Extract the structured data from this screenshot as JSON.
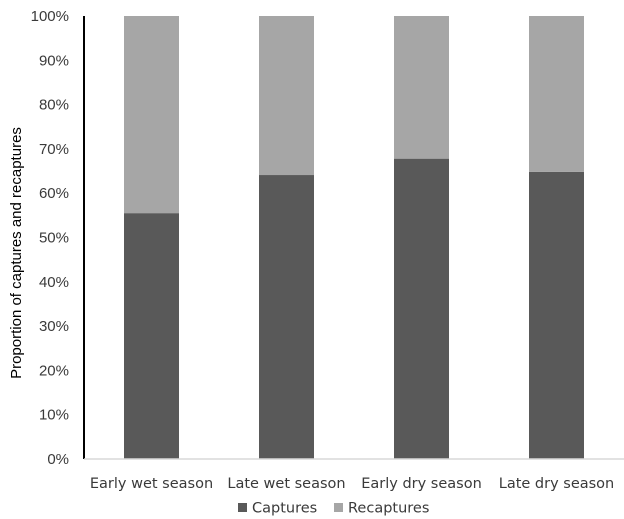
{
  "chart_data": {
    "type": "bar",
    "stacked": true,
    "categories": [
      "Early wet season",
      "Late wet season",
      "Early dry season",
      "Late dry season"
    ],
    "series": [
      {
        "name": "Captures",
        "values": [
          55.5,
          64.1,
          67.8,
          64.8
        ],
        "color": "#595959"
      },
      {
        "name": "Recaptures",
        "values": [
          44.5,
          35.9,
          32.2,
          35.2
        ],
        "color": "#a6a6a6"
      }
    ],
    "ylabel": "Proportion of captures and recaptures",
    "xlabel": "",
    "ylim": [
      0,
      100
    ],
    "yticks": [
      "0%",
      "10%",
      "20%",
      "30%",
      "40%",
      "50%",
      "60%",
      "70%",
      "80%",
      "90%",
      "100%"
    ],
    "grid": false,
    "legend": "bottom"
  }
}
